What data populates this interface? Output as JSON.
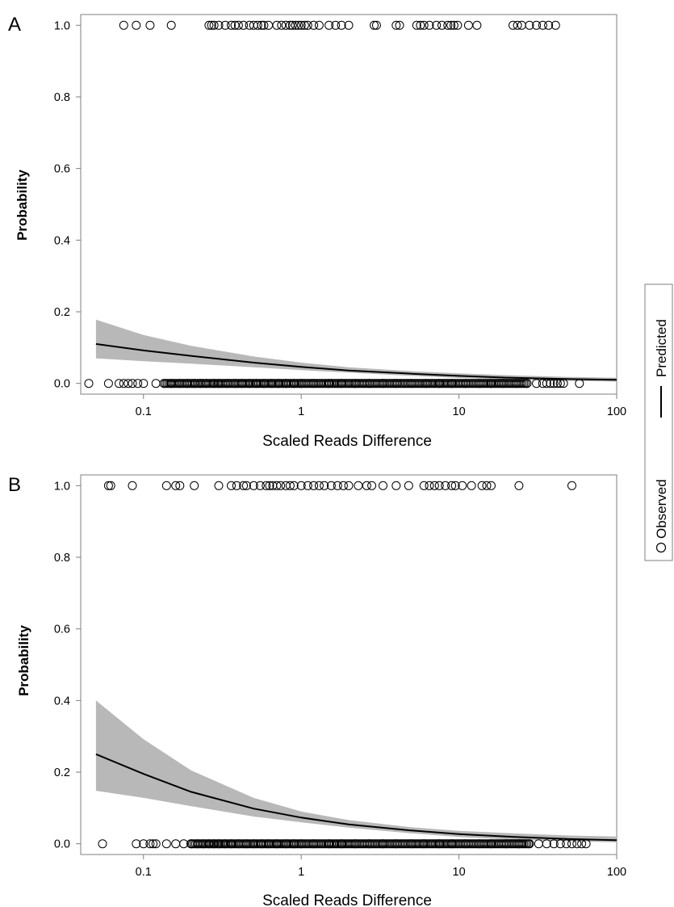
{
  "chart_data": [
    {
      "panel": "A",
      "type": "scatter",
      "xlabel": "Scaled Reads Difference",
      "ylabel": "Probability",
      "xscale": "log",
      "xlim": [
        0.04,
        100
      ],
      "ylim": [
        -0.03,
        1.03
      ],
      "xticks": [
        0.1,
        1,
        10,
        100
      ],
      "xtick_labels": [
        "0.1",
        "1",
        "10",
        "100"
      ],
      "yticks": [
        0,
        0.2,
        0.4,
        0.6,
        0.8,
        1.0
      ],
      "ytick_labels": [
        "0.0",
        "0.2",
        "0.4",
        "0.6",
        "0.8",
        "1.0"
      ],
      "grid": false,
      "series": [
        {
          "name": "Observed",
          "kind": "points",
          "points_y1": [
            0.075,
            0.09,
            0.11,
            0.15,
            0.26,
            0.27,
            0.28,
            0.3,
            0.33,
            0.36,
            0.38,
            0.4,
            0.43,
            0.47,
            0.5,
            0.53,
            0.56,
            0.58,
            0.62,
            0.7,
            0.75,
            0.8,
            0.85,
            0.88,
            0.92,
            0.96,
            1.0,
            1.05,
            1.1,
            1.2,
            1.3,
            1.5,
            1.65,
            1.8,
            2.0,
            2.9,
            3.0,
            4.0,
            4.2,
            5.4,
            5.7,
            6.0,
            6.5,
            7.2,
            7.8,
            8.5,
            8.9,
            9.3,
            9.8,
            11.5,
            13.0,
            22.0,
            23.5,
            25.0,
            28.0,
            31.0,
            34.0,
            37.0,
            41.0
          ],
          "points_y0": [
            0.045,
            0.06,
            0.07,
            0.075,
            0.08,
            0.085,
            0.092,
            0.1,
            0.12,
            0.135,
            0.15,
            0.17,
            0.19,
            0.21,
            0.23,
            0.25,
            0.28,
            0.3,
            0.34,
            0.38,
            0.42,
            0.47,
            0.52,
            0.58,
            0.65,
            0.72,
            0.8,
            0.9,
            1.0,
            1.2,
            1.5,
            1.8,
            2.2,
            2.7,
            3.3,
            4.0,
            5.0,
            6.2,
            7.5,
            9.0,
            11.0,
            13.5,
            16.0,
            19.0,
            23.0,
            27.0,
            31.0,
            34.0,
            36.0,
            38.0,
            40.0,
            42.0,
            44.0,
            46.0,
            58.0
          ]
        },
        {
          "name": "Predicted",
          "kind": "line",
          "x": [
            0.05,
            0.1,
            0.2,
            0.5,
            1,
            2,
            5,
            10,
            20,
            50,
            100
          ],
          "y": [
            0.11,
            0.092,
            0.077,
            0.058,
            0.046,
            0.036,
            0.027,
            0.021,
            0.016,
            0.012,
            0.01
          ],
          "ci_lower": [
            0.07,
            0.062,
            0.055,
            0.045,
            0.037,
            0.03,
            0.021,
            0.015,
            0.011,
            0.007,
            0.005
          ],
          "ci_upper": [
            0.178,
            0.135,
            0.105,
            0.075,
            0.058,
            0.045,
            0.034,
            0.028,
            0.023,
            0.018,
            0.016
          ]
        }
      ]
    },
    {
      "panel": "B",
      "type": "scatter",
      "xlabel": "Scaled Reads Difference",
      "ylabel": "Probability",
      "xscale": "log",
      "xlim": [
        0.04,
        100
      ],
      "ylim": [
        -0.03,
        1.03
      ],
      "xticks": [
        0.1,
        1,
        10,
        100
      ],
      "xtick_labels": [
        "0.1",
        "1",
        "10",
        "100"
      ],
      "yticks": [
        0,
        0.2,
        0.4,
        0.6,
        0.8,
        1.0
      ],
      "ytick_labels": [
        "0.0",
        "0.2",
        "0.4",
        "0.6",
        "0.8",
        "1.0"
      ],
      "grid": false,
      "series": [
        {
          "name": "Observed",
          "kind": "points",
          "points_y1": [
            0.06,
            0.062,
            0.085,
            0.14,
            0.16,
            0.17,
            0.21,
            0.3,
            0.36,
            0.39,
            0.43,
            0.45,
            0.5,
            0.55,
            0.6,
            0.63,
            0.66,
            0.7,
            0.74,
            0.8,
            0.85,
            0.9,
            1.0,
            1.1,
            1.2,
            1.3,
            1.4,
            1.55,
            1.7,
            1.85,
            2.0,
            2.3,
            2.6,
            2.8,
            3.3,
            4.0,
            4.8,
            6.0,
            6.5,
            7.0,
            7.5,
            8.2,
            9.0,
            9.5,
            10.5,
            12.0,
            14.0,
            15.0,
            16.0,
            24.0,
            52.0
          ],
          "points_y0": [
            0.055,
            0.09,
            0.1,
            0.11,
            0.115,
            0.12,
            0.14,
            0.16,
            0.18,
            0.2,
            0.22,
            0.24,
            0.26,
            0.28,
            0.3,
            0.33,
            0.36,
            0.4,
            0.45,
            0.5,
            0.56,
            0.62,
            0.7,
            0.8,
            0.9,
            1.0,
            1.2,
            1.5,
            1.8,
            2.2,
            2.7,
            3.3,
            4.0,
            5.0,
            6.0,
            7.5,
            9.0,
            11.0,
            13.5,
            16.0,
            20.0,
            24.0,
            28.0,
            32.0,
            36.0,
            40.0,
            44.0,
            48.0,
            52.0,
            56.0,
            60.0,
            64.0
          ]
        },
        {
          "name": "Predicted",
          "kind": "line",
          "x": [
            0.05,
            0.1,
            0.2,
            0.5,
            1,
            2,
            5,
            10,
            20,
            50,
            100
          ],
          "y": [
            0.25,
            0.195,
            0.145,
            0.098,
            0.073,
            0.054,
            0.037,
            0.027,
            0.02,
            0.013,
            0.01
          ],
          "ci_lower": [
            0.148,
            0.128,
            0.105,
            0.076,
            0.06,
            0.045,
            0.029,
            0.019,
            0.012,
            0.007,
            0.004
          ],
          "ci_upper": [
            0.4,
            0.292,
            0.205,
            0.128,
            0.09,
            0.066,
            0.046,
            0.036,
            0.03,
            0.023,
            0.02
          ]
        }
      ]
    }
  ],
  "legend": {
    "observed_label": "Observed",
    "predicted_label": "Predicted",
    "placement": "right"
  },
  "colors": {
    "ci_band": "#b8b8b8",
    "line": "#000000",
    "marker_stroke": "#000000",
    "frame": "#7f7f7f"
  }
}
